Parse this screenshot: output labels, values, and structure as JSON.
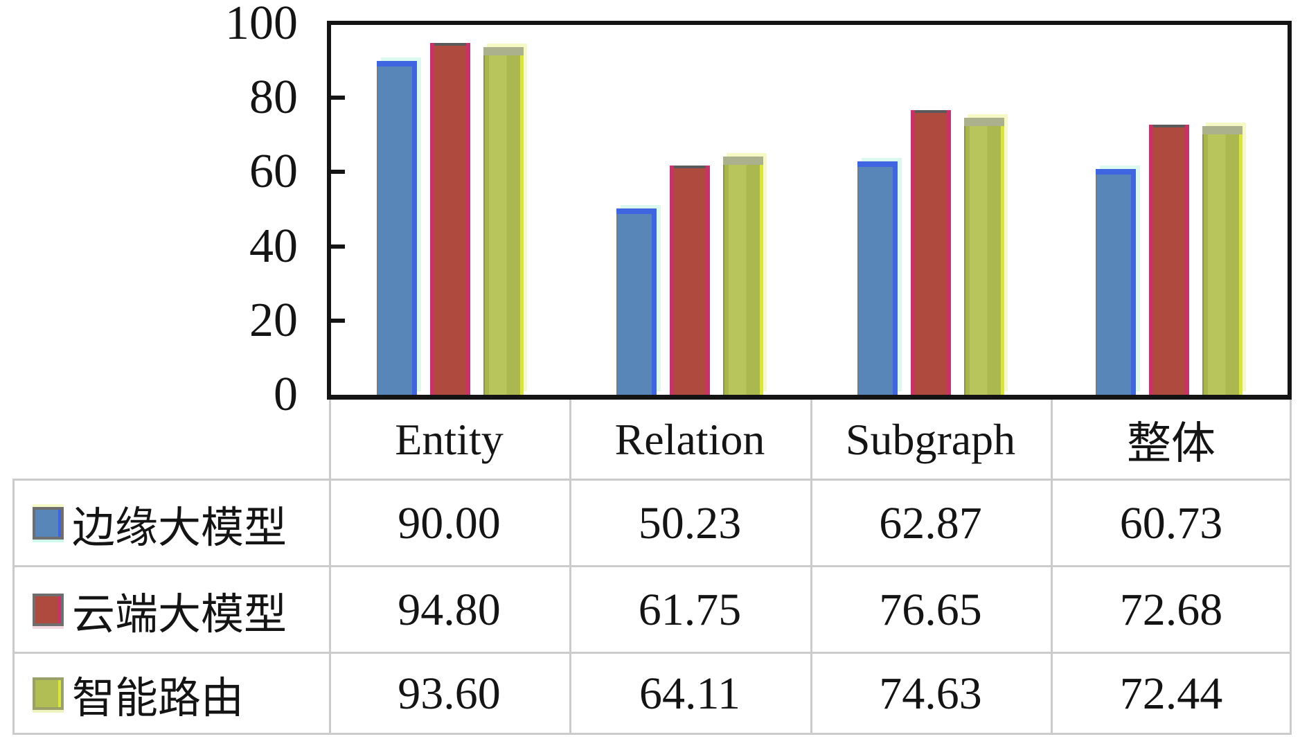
{
  "chart_data": {
    "type": "bar",
    "title": "",
    "xlabel": "",
    "ylabel": "",
    "categories": [
      "Entity",
      "Relation",
      "Subgraph",
      "整体"
    ],
    "series": [
      {
        "name": "边缘大模型",
        "color": "#5886B8",
        "edge_color": "#3F66E0",
        "values": [
          90.0,
          50.23,
          62.87,
          60.73
        ]
      },
      {
        "name": "云端大模型",
        "color": "#AE4A3E",
        "edge_color": "#CB3168",
        "values": [
          94.8,
          61.75,
          76.65,
          72.68
        ]
      },
      {
        "name": "智能路由",
        "color": "#B1BE53",
        "edge_color": "#D9E53C",
        "values": [
          93.6,
          64.11,
          74.63,
          72.44
        ]
      }
    ],
    "ylim": [
      0,
      100
    ],
    "yticks": [
      "0",
      "20",
      "40",
      "60",
      "80",
      "100"
    ],
    "grid": false,
    "legend_position": "table-rows-left",
    "axis_color": "#141414",
    "table_border_color": "#CBCBCB"
  },
  "table": {
    "columns": [
      "Entity",
      "Relation",
      "Subgraph",
      "整体"
    ],
    "rows": [
      {
        "label": "边缘大模型",
        "values": [
          "90.00",
          "50.23",
          "62.87",
          "60.73"
        ]
      },
      {
        "label": "云端大模型",
        "values": [
          "94.80",
          "61.75",
          "76.65",
          "72.68"
        ]
      },
      {
        "label": "智能路由",
        "values": [
          "93.60",
          "64.11",
          "74.63",
          "72.44"
        ]
      }
    ]
  }
}
